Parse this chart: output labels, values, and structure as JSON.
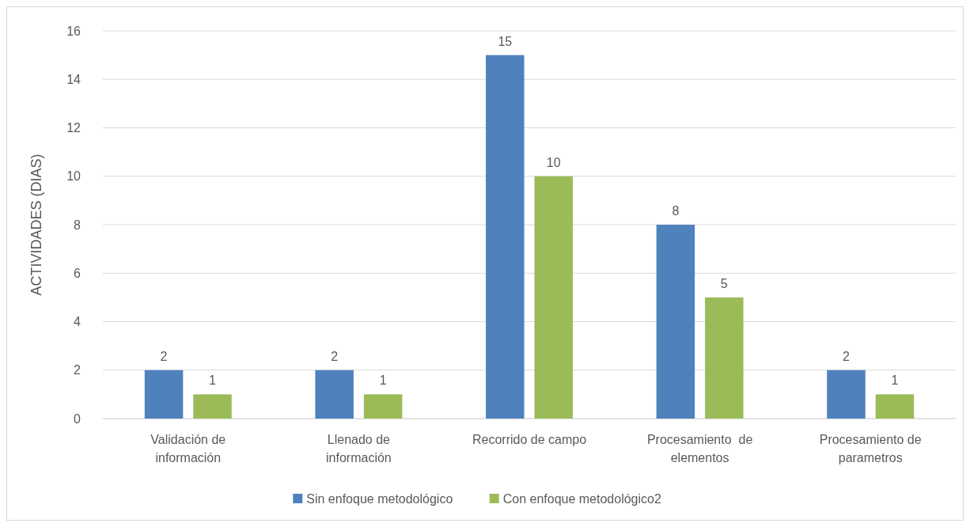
{
  "chart_data": {
    "type": "bar",
    "ylabel": "ACTIVIDADES (DIAS)",
    "categories": [
      "Validación de información",
      "Llenado de información",
      "Recorrido de campo",
      "Procesamiento  de elementos",
      "Procesamiento de parametros"
    ],
    "series": [
      {
        "name": "Sin enfoque metodológico",
        "color": "#4f81bd",
        "values": [
          2,
          2,
          15,
          8,
          2
        ]
      },
      {
        "name": "Con enfoque metodológico2",
        "color": "#9bbb59",
        "values": [
          1,
          1,
          10,
          5,
          1
        ]
      }
    ],
    "ylim": [
      0,
      16
    ],
    "yticks": [
      0,
      2,
      4,
      6,
      8,
      10,
      12,
      14,
      16
    ],
    "grid": "y",
    "legend": "bottom",
    "data_labels": true
  }
}
